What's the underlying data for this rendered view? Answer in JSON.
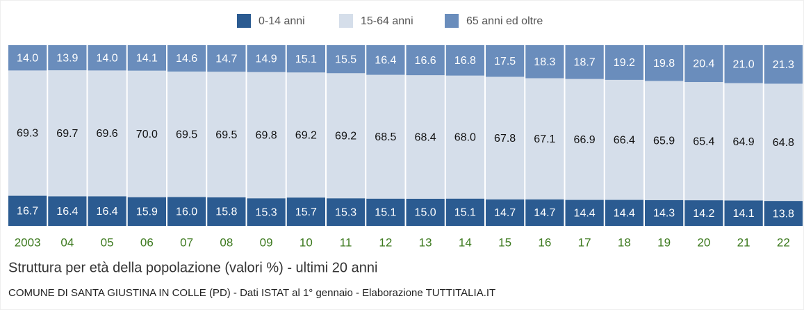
{
  "chart_data": {
    "type": "stacked_bar",
    "title": "Struttura per età della popolazione (valori %) - ultimi 20 anni",
    "subtitle": "COMUNE DI SANTA GIUSTINA IN COLLE (PD) - Dati ISTAT al 1° gennaio - Elaborazione TUTTITALIA.IT",
    "categories": [
      "2003",
      "04",
      "05",
      "06",
      "07",
      "08",
      "09",
      "10",
      "11",
      "12",
      "13",
      "14",
      "15",
      "16",
      "17",
      "18",
      "19",
      "20",
      "21",
      "22"
    ],
    "series": [
      {
        "name": "0-14 anni",
        "color": "#2b5b91",
        "label_color": "#ffffff",
        "values": [
          16.7,
          16.4,
          16.4,
          15.9,
          16.0,
          15.8,
          15.3,
          15.7,
          15.3,
          15.1,
          15.0,
          15.1,
          14.7,
          14.7,
          14.4,
          14.4,
          14.3,
          14.2,
          14.1,
          13.8
        ],
        "value_labels": [
          "16.7",
          "16.4",
          "16.4",
          "15.9",
          "16.0",
          "15.8",
          "15.3",
          "15.7",
          "15.3",
          "15.1",
          "15.0",
          "15.1",
          "14.7",
          "14.7",
          "14.4",
          "14.4",
          "14.3",
          "14.2",
          "14.1",
          "13.8"
        ]
      },
      {
        "name": "15-64 anni",
        "color": "#d5deea",
        "label_color": "#111111",
        "values": [
          69.3,
          69.7,
          69.6,
          70.0,
          69.5,
          69.5,
          69.8,
          69.2,
          69.2,
          68.5,
          68.4,
          68.0,
          67.8,
          67.1,
          66.9,
          66.4,
          65.9,
          65.4,
          64.9,
          64.8
        ],
        "value_labels": [
          "69.3",
          "69.7",
          "69.6",
          "70.0",
          "69.5",
          "69.5",
          "69.8",
          "69.2",
          "69.2",
          "68.5",
          "68.4",
          "68.0",
          "67.8",
          "67.1",
          "66.9",
          "66.4",
          "65.9",
          "65.4",
          "64.9",
          "64.8"
        ]
      },
      {
        "name": "65 anni ed oltre",
        "color": "#6a8dbc",
        "label_color": "#ffffff",
        "values": [
          14.0,
          13.9,
          14.0,
          14.1,
          14.6,
          14.7,
          14.9,
          15.1,
          15.5,
          16.4,
          16.6,
          16.8,
          17.5,
          18.3,
          18.7,
          19.2,
          19.8,
          20.4,
          21.0,
          21.3
        ],
        "value_labels": [
          "14.0",
          "13.9",
          "14.0",
          "14.1",
          "14.6",
          "14.7",
          "14.9",
          "15.1",
          "15.5",
          "16.4",
          "16.6",
          "16.8",
          "17.5",
          "18.3",
          "18.7",
          "19.2",
          "19.8",
          "20.4",
          "21.0",
          "21.3"
        ]
      }
    ]
  }
}
